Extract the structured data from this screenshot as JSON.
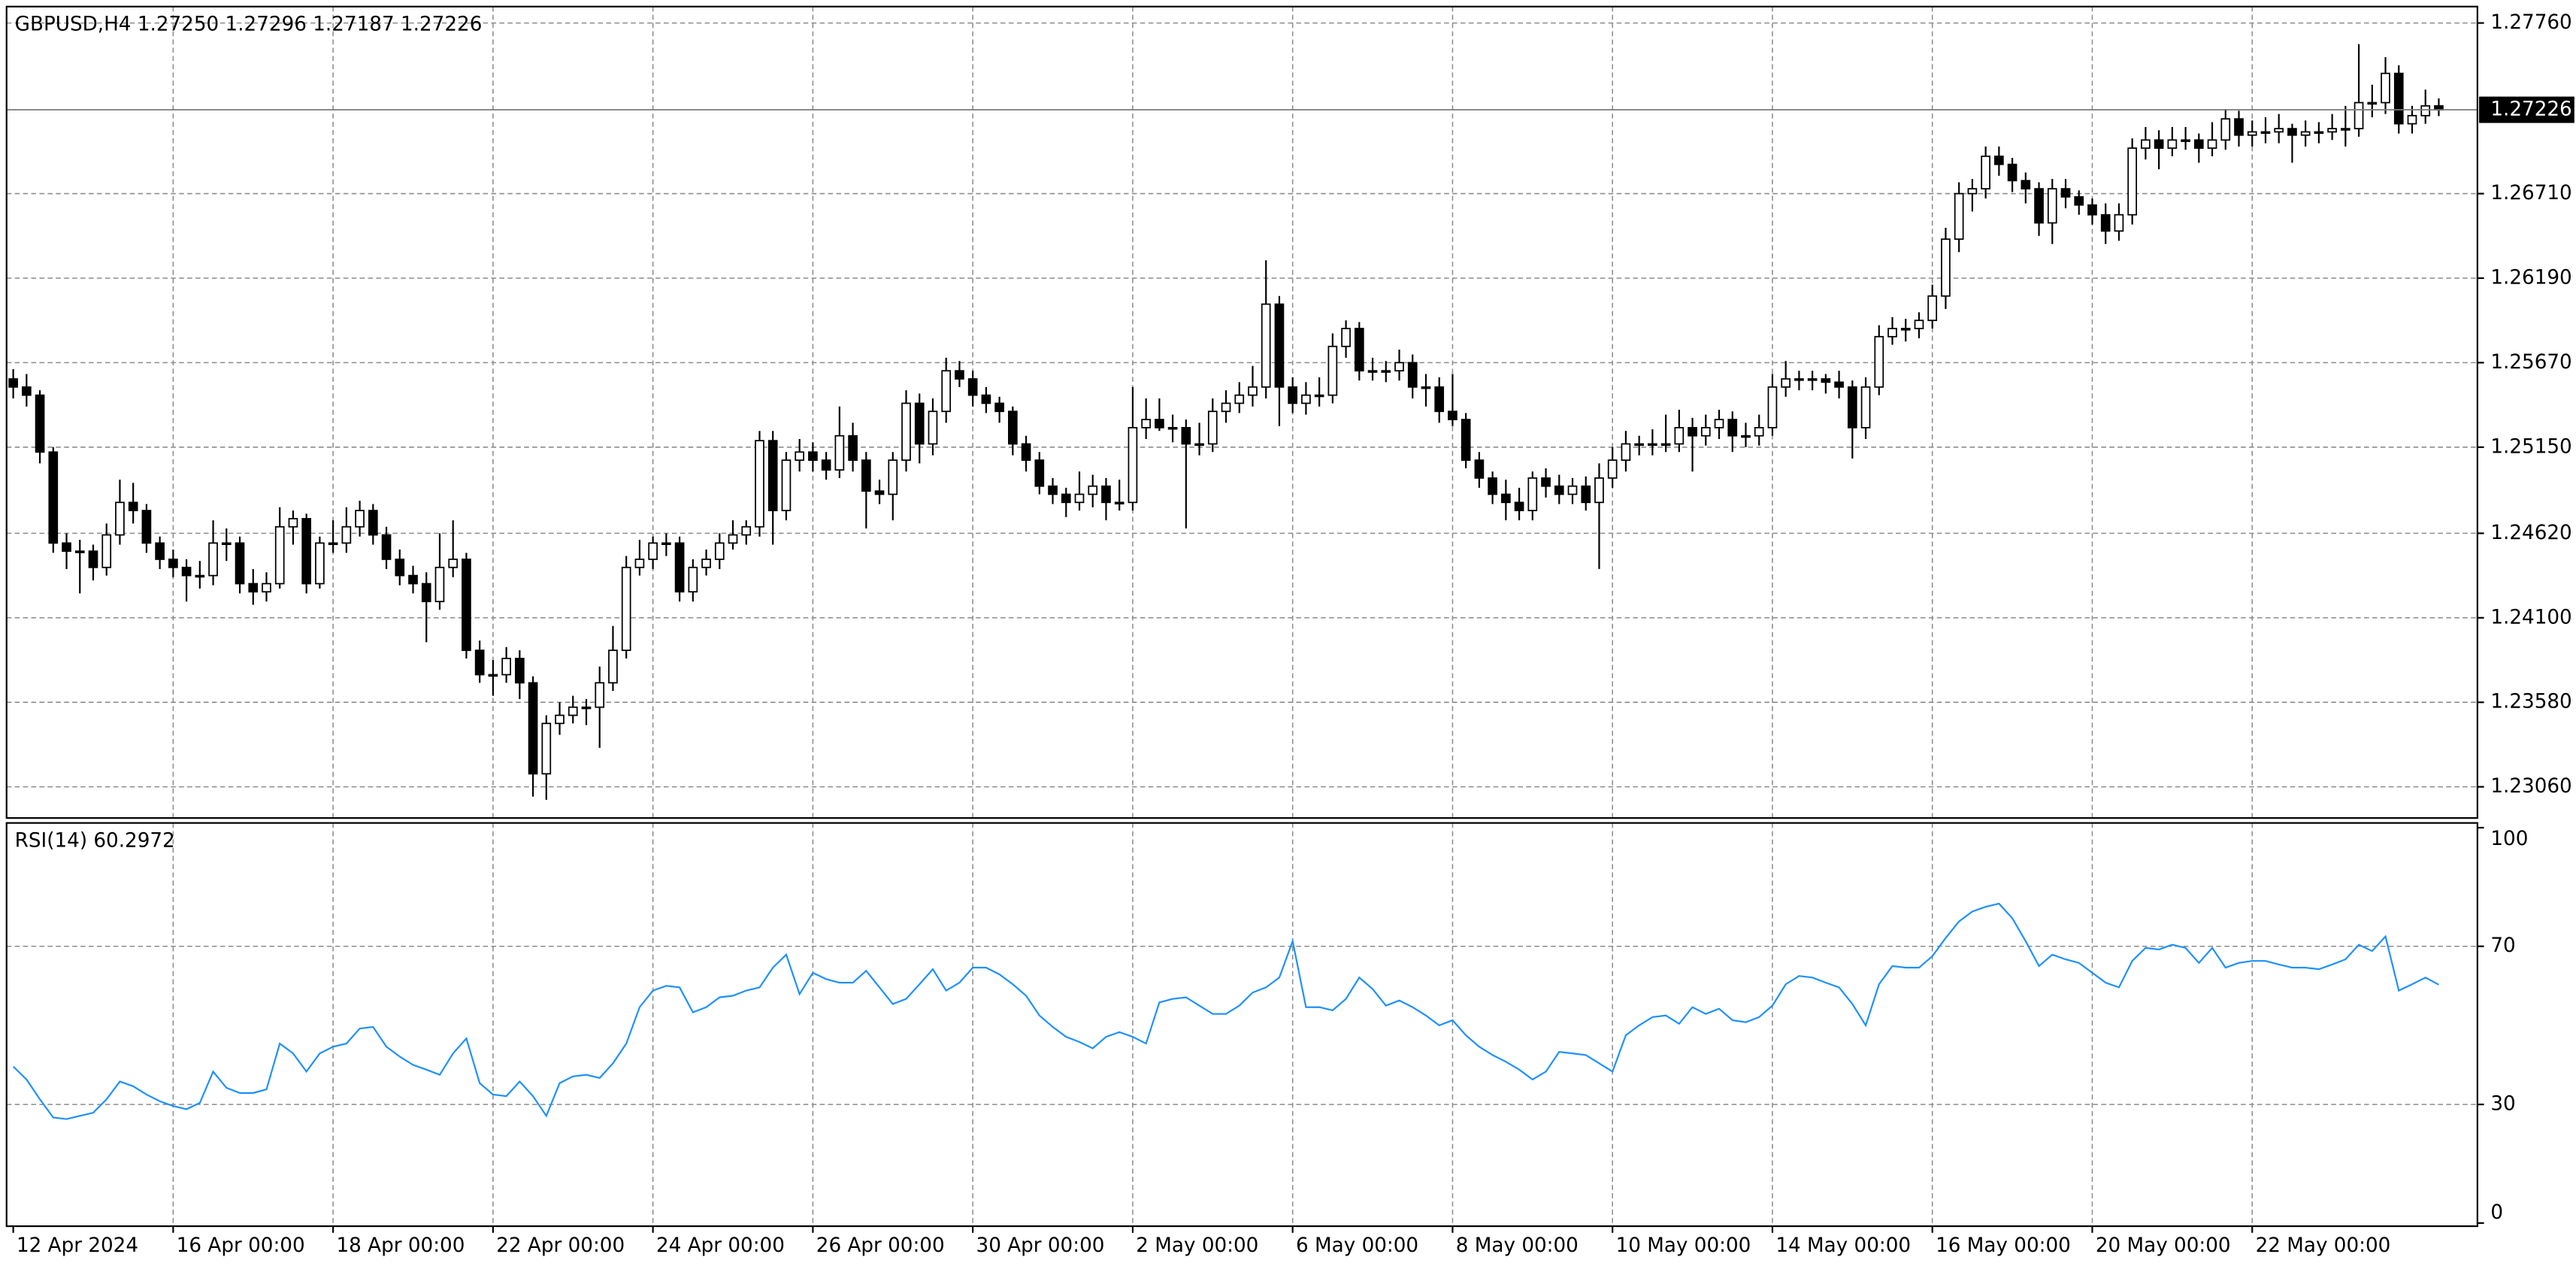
{
  "chart_data": {
    "type": "candlestick",
    "title": "GBPUSD,H4  1.27250 1.27296 1.27187 1.27226",
    "up_color": "#ffffff",
    "down_color": "#000000",
    "edge_color": "#000000",
    "grid": true,
    "current_price": 1.27226,
    "ylim": [
      1.22868,
      1.27861
    ],
    "yticks": [
      {
        "value": 1.2306,
        "label": "1.23060"
      },
      {
        "value": 1.2358,
        "label": "1.23580"
      },
      {
        "value": 1.241,
        "label": "1.24100"
      },
      {
        "value": 1.2462,
        "label": "1.24620"
      },
      {
        "value": 1.2515,
        "label": "1.25150"
      },
      {
        "value": 1.2567,
        "label": "1.25670"
      },
      {
        "value": 1.2619,
        "label": "1.26190"
      },
      {
        "value": 1.2671,
        "label": "1.26710"
      },
      {
        "value": 1.2776,
        "label": "1.27760"
      }
    ],
    "xlim": [
      -0.5,
      184.9
    ],
    "xticks": [
      {
        "value": 0,
        "label": "12 Apr 2024"
      },
      {
        "value": 12,
        "label": "16 Apr 00:00"
      },
      {
        "value": 24,
        "label": "18 Apr 00:00"
      },
      {
        "value": 36,
        "label": "22 Apr 00:00"
      },
      {
        "value": 48,
        "label": "24 Apr 00:00"
      },
      {
        "value": 60,
        "label": "26 Apr 00:00"
      },
      {
        "value": 72,
        "label": "30 Apr 00:00"
      },
      {
        "value": 84,
        "label": "2 May 00:00"
      },
      {
        "value": 96,
        "label": "6 May 00:00"
      },
      {
        "value": 108,
        "label": "8 May 00:00"
      },
      {
        "value": 120,
        "label": "10 May 00:00"
      },
      {
        "value": 132,
        "label": "14 May 00:00"
      },
      {
        "value": 144,
        "label": "16 May 00:00"
      },
      {
        "value": 156,
        "label": "20 May 00:00"
      },
      {
        "value": 168,
        "label": "22 May 00:00"
      }
    ],
    "ohlc": [
      [
        1.2557,
        1.2563,
        1.2545,
        1.2552
      ],
      [
        1.2552,
        1.256,
        1.254,
        1.2547
      ],
      [
        1.2547,
        1.255,
        1.2505,
        1.2512
      ],
      [
        1.2512,
        1.2515,
        1.245,
        1.2456
      ],
      [
        1.2456,
        1.2462,
        1.244,
        1.2451
      ],
      [
        1.2451,
        1.2458,
        1.2425,
        1.2451
      ],
      [
        1.2451,
        1.2455,
        1.2433,
        1.2441
      ],
      [
        1.2441,
        1.2468,
        1.2436,
        1.2461
      ],
      [
        1.2461,
        1.2495,
        1.2455,
        1.2481
      ],
      [
        1.2481,
        1.2493,
        1.2468,
        1.2476
      ],
      [
        1.2476,
        1.248,
        1.245,
        1.2456
      ],
      [
        1.2456,
        1.246,
        1.244,
        1.2446
      ],
      [
        1.2446,
        1.2452,
        1.2435,
        1.2441
      ],
      [
        1.2441,
        1.2446,
        1.242,
        1.2436
      ],
      [
        1.2436,
        1.2445,
        1.2428,
        1.2436
      ],
      [
        1.2436,
        1.247,
        1.243,
        1.2456
      ],
      [
        1.2456,
        1.2465,
        1.2445,
        1.2456
      ],
      [
        1.2456,
        1.246,
        1.2425,
        1.2431
      ],
      [
        1.2431,
        1.244,
        1.2418,
        1.2426
      ],
      [
        1.2426,
        1.2438,
        1.242,
        1.2431
      ],
      [
        1.2431,
        1.2478,
        1.2428,
        1.2466
      ],
      [
        1.2466,
        1.2476,
        1.2455,
        1.2471
      ],
      [
        1.2471,
        1.2474,
        1.2425,
        1.2431
      ],
      [
        1.2431,
        1.246,
        1.2428,
        1.2456
      ],
      [
        1.2456,
        1.247,
        1.245,
        1.2456
      ],
      [
        1.2456,
        1.2478,
        1.245,
        1.2466
      ],
      [
        1.2466,
        1.2482,
        1.246,
        1.2476
      ],
      [
        1.2476,
        1.248,
        1.2455,
        1.2461
      ],
      [
        1.2461,
        1.2466,
        1.244,
        1.2446
      ],
      [
        1.2446,
        1.2452,
        1.243,
        1.2436
      ],
      [
        1.2436,
        1.2442,
        1.2425,
        1.2431
      ],
      [
        1.2431,
        1.2438,
        1.2395,
        1.242
      ],
      [
        1.242,
        1.2462,
        1.2415,
        1.2441
      ],
      [
        1.2441,
        1.247,
        1.2435,
        1.2446
      ],
      [
        1.2446,
        1.245,
        1.2385,
        1.239
      ],
      [
        1.239,
        1.2396,
        1.237,
        1.2375
      ],
      [
        1.2375,
        1.2384,
        1.2362,
        1.2375
      ],
      [
        1.2375,
        1.2392,
        1.237,
        1.2385
      ],
      [
        1.2385,
        1.239,
        1.236,
        1.237
      ],
      [
        1.237,
        1.2374,
        1.23,
        1.2314
      ],
      [
        1.2314,
        1.235,
        1.2298,
        1.2345
      ],
      [
        1.2345,
        1.2358,
        1.2338,
        1.235
      ],
      [
        1.235,
        1.2362,
        1.2345,
        1.2355
      ],
      [
        1.2355,
        1.236,
        1.2344,
        1.2355
      ],
      [
        1.2355,
        1.238,
        1.233,
        1.237
      ],
      [
        1.237,
        1.2405,
        1.2365,
        1.239
      ],
      [
        1.239,
        1.2448,
        1.2385,
        1.2441
      ],
      [
        1.2441,
        1.2458,
        1.2436,
        1.2446
      ],
      [
        1.2446,
        1.246,
        1.244,
        1.2456
      ],
      [
        1.2456,
        1.2462,
        1.2448,
        1.2456
      ],
      [
        1.2456,
        1.246,
        1.242,
        1.2426
      ],
      [
        1.2426,
        1.2446,
        1.242,
        1.2441
      ],
      [
        1.2441,
        1.2452,
        1.2436,
        1.2446
      ],
      [
        1.2446,
        1.2462,
        1.244,
        1.2456
      ],
      [
        1.2456,
        1.247,
        1.2452,
        1.2461
      ],
      [
        1.2461,
        1.247,
        1.2455,
        1.2466
      ],
      [
        1.2466,
        1.2525,
        1.246,
        1.2519
      ],
      [
        1.2519,
        1.2525,
        1.2455,
        1.2476
      ],
      [
        1.2476,
        1.2512,
        1.247,
        1.2507
      ],
      [
        1.2507,
        1.252,
        1.25,
        1.2512
      ],
      [
        1.2512,
        1.2518,
        1.25,
        1.2507
      ],
      [
        1.2507,
        1.2512,
        1.2495,
        1.2501
      ],
      [
        1.2501,
        1.254,
        1.2496,
        1.2522
      ],
      [
        1.2522,
        1.253,
        1.25,
        1.2507
      ],
      [
        1.2507,
        1.2512,
        1.2465,
        1.2488
      ],
      [
        1.2488,
        1.2495,
        1.248,
        1.2486
      ],
      [
        1.2486,
        1.2512,
        1.247,
        1.2507
      ],
      [
        1.2507,
        1.255,
        1.25,
        1.2542
      ],
      [
        1.2542,
        1.2548,
        1.2505,
        1.2517
      ],
      [
        1.2517,
        1.2545,
        1.251,
        1.2537
      ],
      [
        1.2537,
        1.257,
        1.253,
        1.2562
      ],
      [
        1.2562,
        1.2568,
        1.2552,
        1.2557
      ],
      [
        1.2557,
        1.2562,
        1.254,
        1.2547
      ],
      [
        1.2547,
        1.2552,
        1.2536,
        1.2542
      ],
      [
        1.2542,
        1.2546,
        1.253,
        1.2537
      ],
      [
        1.2537,
        1.254,
        1.251,
        1.2517
      ],
      [
        1.2517,
        1.2522,
        1.25,
        1.2507
      ],
      [
        1.2507,
        1.2512,
        1.2486,
        1.2491
      ],
      [
        1.2491,
        1.2496,
        1.248,
        1.2486
      ],
      [
        1.2486,
        1.249,
        1.2472,
        1.2481
      ],
      [
        1.2481,
        1.25,
        1.2476,
        1.2486
      ],
      [
        1.2486,
        1.2498,
        1.2478,
        1.2491
      ],
      [
        1.2491,
        1.2496,
        1.247,
        1.2481
      ],
      [
        1.2481,
        1.2495,
        1.2476,
        1.2481
      ],
      [
        1.2481,
        1.2552,
        1.2476,
        1.2527
      ],
      [
        1.2527,
        1.2545,
        1.252,
        1.2532
      ],
      [
        1.2532,
        1.2545,
        1.2525,
        1.2527
      ],
      [
        1.2527,
        1.2535,
        1.2518,
        1.2527
      ],
      [
        1.2527,
        1.2532,
        1.2465,
        1.2517
      ],
      [
        1.2517,
        1.253,
        1.251,
        1.2517
      ],
      [
        1.2517,
        1.2545,
        1.2512,
        1.2537
      ],
      [
        1.2537,
        1.255,
        1.253,
        1.2542
      ],
      [
        1.2542,
        1.2555,
        1.2536,
        1.2547
      ],
      [
        1.2547,
        1.2565,
        1.254,
        1.2552
      ],
      [
        1.2552,
        1.263,
        1.2545,
        1.2603
      ],
      [
        1.2603,
        1.2608,
        1.2528,
        1.2552
      ],
      [
        1.2552,
        1.2558,
        1.2536,
        1.2542
      ],
      [
        1.2542,
        1.2555,
        1.2535,
        1.2547
      ],
      [
        1.2547,
        1.2558,
        1.254,
        1.2547
      ],
      [
        1.2547,
        1.2585,
        1.2542,
        1.2577
      ],
      [
        1.2577,
        1.2593,
        1.257,
        1.2588
      ],
      [
        1.2588,
        1.2592,
        1.2556,
        1.2562
      ],
      [
        1.2562,
        1.257,
        1.2556,
        1.2562
      ],
      [
        1.2562,
        1.2568,
        1.2555,
        1.2562
      ],
      [
        1.2562,
        1.2575,
        1.2556,
        1.2567
      ],
      [
        1.2567,
        1.2572,
        1.2545,
        1.2552
      ],
      [
        1.2552,
        1.256,
        1.254,
        1.2552
      ],
      [
        1.2552,
        1.2558,
        1.253,
        1.2537
      ],
      [
        1.2537,
        1.256,
        1.2528,
        1.2532
      ],
      [
        1.2532,
        1.2536,
        1.2502,
        1.2507
      ],
      [
        1.2507,
        1.2512,
        1.249,
        1.2496
      ],
      [
        1.2496,
        1.25,
        1.248,
        1.2486
      ],
      [
        1.2486,
        1.2495,
        1.247,
        1.2481
      ],
      [
        1.2481,
        1.249,
        1.247,
        1.2476
      ],
      [
        1.2476,
        1.25,
        1.247,
        1.2496
      ],
      [
        1.2496,
        1.2502,
        1.2484,
        1.2491
      ],
      [
        1.2491,
        1.2498,
        1.248,
        1.2486
      ],
      [
        1.2486,
        1.2496,
        1.248,
        1.2491
      ],
      [
        1.2491,
        1.2497,
        1.2476,
        1.2481
      ],
      [
        1.2481,
        1.2505,
        1.244,
        1.2496
      ],
      [
        1.2496,
        1.2515,
        1.249,
        1.2507
      ],
      [
        1.2507,
        1.2525,
        1.25,
        1.2517
      ],
      [
        1.2517,
        1.2522,
        1.251,
        1.2517
      ],
      [
        1.2517,
        1.2526,
        1.251,
        1.2517
      ],
      [
        1.2517,
        1.2535,
        1.2512,
        1.2517
      ],
      [
        1.2517,
        1.2538,
        1.2512,
        1.2527
      ],
      [
        1.2527,
        1.2533,
        1.25,
        1.2522
      ],
      [
        1.2522,
        1.2535,
        1.2516,
        1.2527
      ],
      [
        1.2527,
        1.2538,
        1.252,
        1.2532
      ],
      [
        1.2532,
        1.2537,
        1.2512,
        1.2522
      ],
      [
        1.2522,
        1.253,
        1.2515,
        1.2522
      ],
      [
        1.2522,
        1.2535,
        1.2516,
        1.2527
      ],
      [
        1.2527,
        1.256,
        1.2522,
        1.2552
      ],
      [
        1.2552,
        1.2568,
        1.2546,
        1.2557
      ],
      [
        1.2557,
        1.2562,
        1.255,
        1.2557
      ],
      [
        1.2557,
        1.2562,
        1.255,
        1.2557
      ],
      [
        1.2557,
        1.256,
        1.2548,
        1.2555
      ],
      [
        1.2555,
        1.2562,
        1.2545,
        1.2552
      ],
      [
        1.2552,
        1.2556,
        1.2508,
        1.2527
      ],
      [
        1.2527,
        1.2558,
        1.252,
        1.2552
      ],
      [
        1.2552,
        1.259,
        1.2547,
        1.2583
      ],
      [
        1.2583,
        1.2595,
        1.2578,
        1.2588
      ],
      [
        1.2588,
        1.2594,
        1.258,
        1.2588
      ],
      [
        1.2588,
        1.2598,
        1.2582,
        1.2593
      ],
      [
        1.2593,
        1.2615,
        1.2588,
        1.2608
      ],
      [
        1.2608,
        1.265,
        1.26,
        1.2643
      ],
      [
        1.2643,
        1.2678,
        1.2635,
        1.2671
      ],
      [
        1.2671,
        1.268,
        1.266,
        1.2674
      ],
      [
        1.2674,
        1.27,
        1.2668,
        1.2694
      ],
      [
        1.2694,
        1.27,
        1.2682,
        1.2689
      ],
      [
        1.2689,
        1.2693,
        1.2672,
        1.2679
      ],
      [
        1.2679,
        1.2684,
        1.2665,
        1.2674
      ],
      [
        1.2674,
        1.2678,
        1.2645,
        1.2653
      ],
      [
        1.2653,
        1.268,
        1.264,
        1.2674
      ],
      [
        1.2674,
        1.268,
        1.2662,
        1.2669
      ],
      [
        1.2669,
        1.2673,
        1.2658,
        1.2664
      ],
      [
        1.2664,
        1.2668,
        1.2652,
        1.2658
      ],
      [
        1.2658,
        1.2665,
        1.264,
        1.2648
      ],
      [
        1.2648,
        1.2665,
        1.2642,
        1.2658
      ],
      [
        1.2658,
        1.2705,
        1.2652,
        1.2699
      ],
      [
        1.2699,
        1.2712,
        1.2692,
        1.2704
      ],
      [
        1.2704,
        1.271,
        1.2686,
        1.2699
      ],
      [
        1.2699,
        1.2712,
        1.2694,
        1.2704
      ],
      [
        1.2704,
        1.2712,
        1.2698,
        1.2704
      ],
      [
        1.2704,
        1.2708,
        1.269,
        1.2699
      ],
      [
        1.2699,
        1.2715,
        1.2694,
        1.2704
      ],
      [
        1.2704,
        1.2723,
        1.2698,
        1.2717
      ],
      [
        1.2717,
        1.2722,
        1.27,
        1.2707
      ],
      [
        1.2707,
        1.2716,
        1.27,
        1.2709
      ],
      [
        1.2709,
        1.2718,
        1.2702,
        1.2709
      ],
      [
        1.2709,
        1.272,
        1.2702,
        1.2711
      ],
      [
        1.2711,
        1.2714,
        1.269,
        1.2707
      ],
      [
        1.2707,
        1.2716,
        1.27,
        1.2709
      ],
      [
        1.2709,
        1.2715,
        1.2702,
        1.2709
      ],
      [
        1.2709,
        1.272,
        1.2704,
        1.2711
      ],
      [
        1.2711,
        1.2725,
        1.27,
        1.2711
      ],
      [
        1.2711,
        1.2763,
        1.2706,
        1.2727
      ],
      [
        1.2727,
        1.2738,
        1.2718,
        1.2727
      ],
      [
        1.2727,
        1.2755,
        1.272,
        1.2745
      ],
      [
        1.2745,
        1.275,
        1.2708,
        1.2714
      ],
      [
        1.2714,
        1.2725,
        1.2708,
        1.2719
      ],
      [
        1.2719,
        1.2735,
        1.2714,
        1.2725
      ],
      [
        1.2725,
        1.27296,
        1.27187,
        1.27226
      ]
    ],
    "rsi": {
      "title": "RSI(14) 60.2972",
      "color": "#1e90ff",
      "ylim": [
        -0.8,
        101.2
      ],
      "yticks": [
        0,
        30,
        70,
        100
      ],
      "grid_levels": [
        30,
        70
      ],
      "values": [
        39.6,
        36.3,
        31.3,
        26.7,
        26.3,
        27.1,
        27.9,
        31.3,
        35.8,
        34.6,
        32.5,
        30.8,
        29.6,
        28.8,
        30.4,
        38.3,
        34.2,
        32.9,
        32.9,
        33.8,
        45.4,
        42.9,
        38.3,
        42.9,
        44.6,
        45.4,
        49.2,
        49.6,
        44.6,
        42.1,
        40.0,
        38.8,
        37.5,
        42.9,
        46.7,
        35.4,
        32.5,
        32.1,
        35.8,
        32.1,
        27.1,
        35.4,
        37.1,
        37.5,
        36.7,
        40.4,
        45.4,
        54.6,
        58.8,
        60.0,
        59.6,
        53.3,
        54.6,
        57.1,
        57.5,
        58.8,
        59.6,
        64.6,
        67.9,
        57.9,
        63.3,
        61.7,
        60.8,
        60.8,
        63.8,
        59.6,
        55.4,
        56.7,
        60.4,
        64.2,
        58.8,
        60.8,
        64.6,
        64.6,
        62.9,
        60.4,
        57.5,
        52.5,
        49.6,
        47.1,
        45.8,
        44.2,
        47.1,
        48.3,
        47.1,
        45.4,
        55.8,
        56.7,
        57.1,
        55.0,
        52.9,
        52.9,
        55.0,
        58.3,
        59.6,
        62.1,
        71.3,
        54.6,
        54.6,
        53.8,
        56.7,
        62.1,
        59.2,
        55.0,
        56.3,
        54.6,
        52.5,
        50.0,
        51.3,
        47.5,
        44.6,
        42.5,
        40.8,
        38.8,
        36.3,
        38.3,
        43.3,
        42.9,
        42.5,
        40.4,
        38.3,
        47.5,
        50.0,
        52.1,
        52.5,
        50.4,
        54.6,
        52.9,
        54.2,
        51.3,
        50.8,
        52.1,
        55.0,
        60.4,
        62.5,
        62.1,
        60.8,
        59.6,
        55.4,
        50.0,
        60.4,
        65.0,
        64.6,
        64.6,
        67.5,
        72.1,
        76.3,
        78.8,
        80.0,
        80.8,
        77.1,
        71.3,
        65.0,
        67.9,
        66.7,
        65.8,
        63.3,
        60.8,
        59.6,
        66.3,
        69.6,
        69.2,
        70.4,
        69.6,
        65.8,
        69.6,
        64.6,
        65.8,
        66.3,
        66.3,
        65.4,
        64.6,
        64.6,
        64.2,
        65.4,
        66.7,
        70.4,
        68.8,
        72.5,
        58.8,
        60.4,
        62.1,
        60.2972
      ]
    }
  }
}
